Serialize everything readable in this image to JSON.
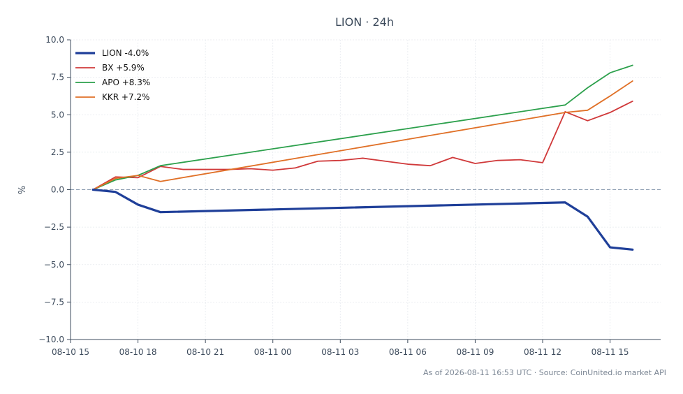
{
  "chart_data": {
    "type": "line",
    "title": "LION · 24h",
    "xlabel": "",
    "ylabel": "%",
    "ylim": [
      -10,
      10
    ],
    "xlim": [
      "2026-08-10 15:00",
      "2026-08-11 17:15"
    ],
    "x_ticks": [
      "08-10 15",
      "08-10 18",
      "08-10 21",
      "08-11 00",
      "08-11 03",
      "08-11 06",
      "08-11 09",
      "08-11 12",
      "08-11 15"
    ],
    "y_ticks": [
      "10.0",
      "7.5",
      "5.0",
      "2.5",
      "0.0",
      "−2.5",
      "−5.0",
      "−7.5",
      "−10.0"
    ],
    "grid": true,
    "zero_line": true,
    "legend_position": "top-left",
    "series": [
      {
        "name": "LION -4.0%",
        "color": "#1f3f99",
        "points": [
          [
            "2026-08-10 16:00",
            0.0
          ],
          [
            "2026-08-10 17:00",
            -0.15
          ],
          [
            "2026-08-10 18:00",
            -1.0
          ],
          [
            "2026-08-10 19:00",
            -1.5
          ],
          [
            "2026-08-11 13:00",
            -0.85
          ],
          [
            "2026-08-11 14:00",
            -1.8
          ],
          [
            "2026-08-11 15:00",
            -3.85
          ],
          [
            "2026-08-11 16:00",
            -4.0
          ]
        ]
      },
      {
        "name": "BX +5.9%",
        "color": "#d0393a",
        "points": [
          [
            "2026-08-10 16:00",
            0.0
          ],
          [
            "2026-08-10 17:00",
            0.85
          ],
          [
            "2026-08-10 18:00",
            0.8
          ],
          [
            "2026-08-10 19:00",
            1.55
          ],
          [
            "2026-08-10 20:00",
            1.35
          ],
          [
            "2026-08-10 21:00",
            1.35
          ],
          [
            "2026-08-10 22:00",
            1.35
          ],
          [
            "2026-08-10 23:00",
            1.4
          ],
          [
            "2026-08-11 00:00",
            1.3
          ],
          [
            "2026-08-11 01:00",
            1.45
          ],
          [
            "2026-08-11 02:00",
            1.9
          ],
          [
            "2026-08-11 03:00",
            1.95
          ],
          [
            "2026-08-11 04:00",
            2.1
          ],
          [
            "2026-08-11 05:00",
            1.9
          ],
          [
            "2026-08-11 06:00",
            1.7
          ],
          [
            "2026-08-11 07:00",
            1.6
          ],
          [
            "2026-08-11 08:00",
            2.15
          ],
          [
            "2026-08-11 09:00",
            1.75
          ],
          [
            "2026-08-11 10:00",
            1.95
          ],
          [
            "2026-08-11 11:00",
            2.0
          ],
          [
            "2026-08-11 12:00",
            1.8
          ],
          [
            "2026-08-11 13:00",
            5.2
          ],
          [
            "2026-08-11 14:00",
            4.6
          ],
          [
            "2026-08-11 15:00",
            5.15
          ],
          [
            "2026-08-11 16:00",
            5.9
          ]
        ]
      },
      {
        "name": "APO +8.3%",
        "color": "#2ca04c",
        "points": [
          [
            "2026-08-10 16:00",
            0.0
          ],
          [
            "2026-08-10 17:00",
            0.65
          ],
          [
            "2026-08-10 18:00",
            0.95
          ],
          [
            "2026-08-10 19:00",
            1.6
          ],
          [
            "2026-08-11 13:00",
            5.65
          ],
          [
            "2026-08-11 14:00",
            6.8
          ],
          [
            "2026-08-11 15:00",
            7.8
          ],
          [
            "2026-08-11 16:00",
            8.3
          ]
        ]
      },
      {
        "name": "KKR +7.2%",
        "color": "#e07027",
        "points": [
          [
            "2026-08-10 16:00",
            0.0
          ],
          [
            "2026-08-10 17:00",
            0.75
          ],
          [
            "2026-08-10 18:00",
            0.95
          ],
          [
            "2026-08-10 19:00",
            0.55
          ],
          [
            "2026-08-11 13:00",
            5.15
          ],
          [
            "2026-08-11 14:00",
            5.3
          ],
          [
            "2026-08-11 15:00",
            6.25
          ],
          [
            "2026-08-11 16:00",
            7.25
          ]
        ]
      }
    ]
  },
  "footer": "As of 2026-08-11 16:53 UTC · Source: CoinUnited.io market API"
}
